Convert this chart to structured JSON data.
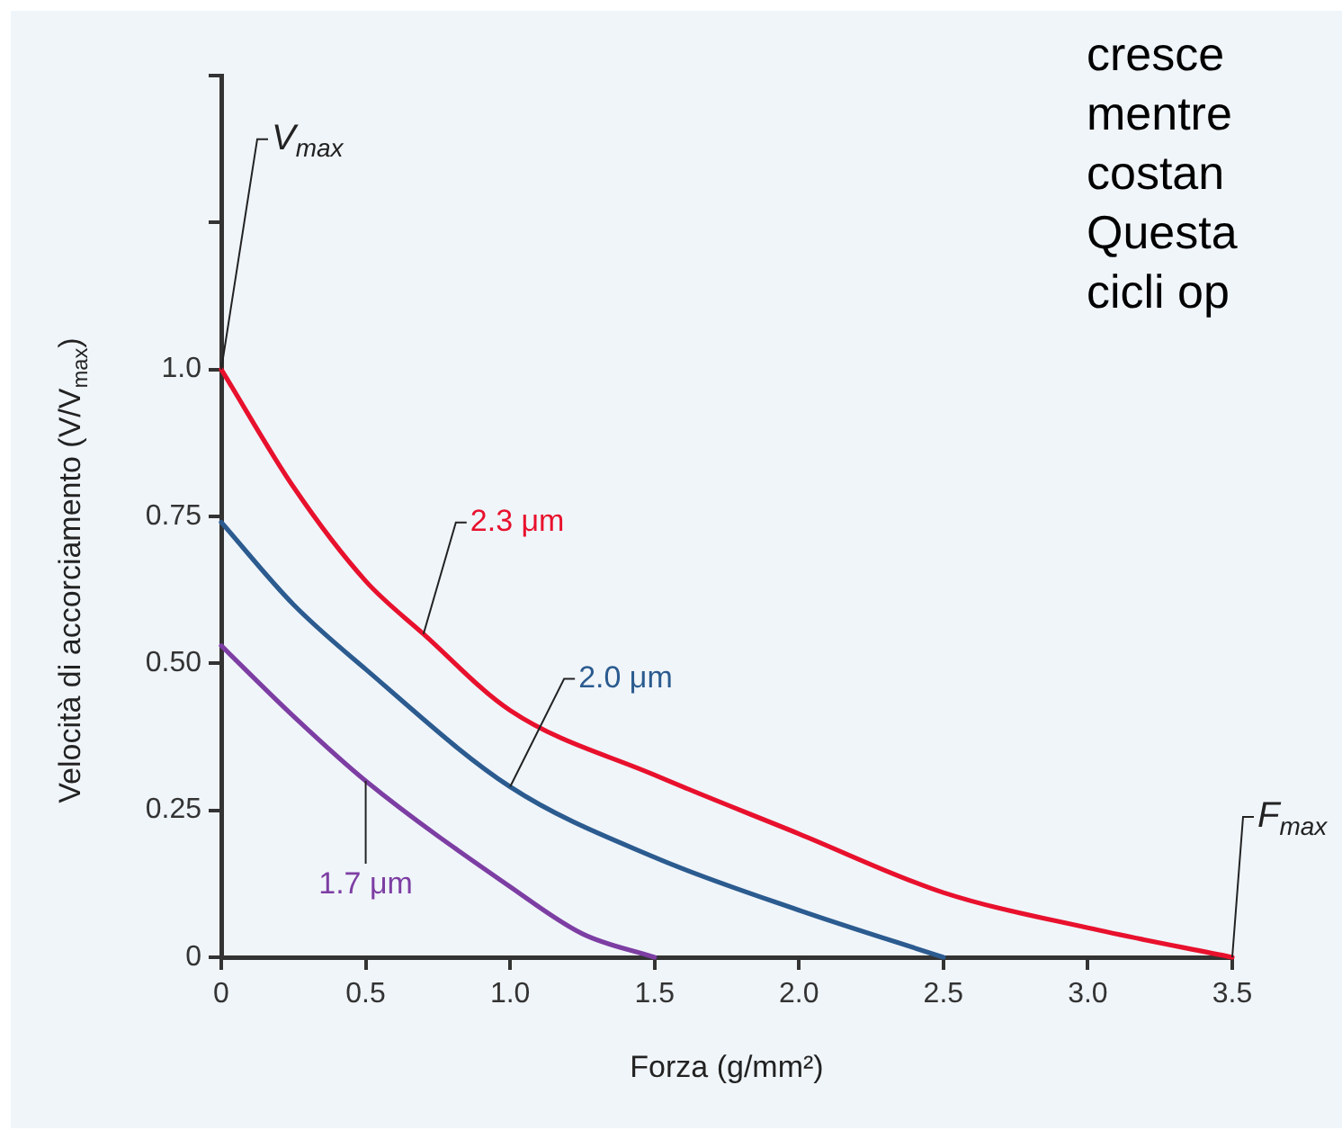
{
  "chart_data": {
    "type": "line",
    "xlabel": "Forza (g/mm²)",
    "ylabel": "Velocità di accorciamento (V/V$_{max}$)",
    "xlim": [
      0,
      3.5
    ],
    "xticks": [
      0,
      0.5,
      {
        "value": 1,
        "label": "1.0"
      },
      1.5,
      {
        "value": 2,
        "label": "2.0"
      },
      2.5,
      {
        "value": 3,
        "label": "3.0"
      },
      3.5
    ],
    "ylim": [
      0,
      1.5
    ],
    "yticks": [
      0,
      0.25,
      {
        "value": 0.5,
        "label": "0.50"
      },
      0.75,
      {
        "value": 1,
        "label": "1.0"
      },
      {
        "value": 1.25,
        "label": null
      },
      {
        "value": 1.5,
        "label": null
      }
    ],
    "grid": false,
    "legend": false,
    "marker": "none",
    "line_style": "solid",
    "series": [
      {
        "name": "2.3 μm",
        "color": "#e8112d",
        "x": [
          0,
          0.25,
          0.5,
          0.7,
          1,
          1.5,
          2,
          2.5,
          3,
          3.5
        ],
        "values": [
          1,
          0.8,
          0.64,
          0.55,
          0.42,
          0.31,
          0.21,
          0.11,
          0.05,
          0
        ]
      },
      {
        "name": "2.0 μm",
        "color": "#2b5b8f",
        "x": [
          0,
          0.25,
          0.5,
          1,
          1.5,
          2,
          2.5
        ],
        "values": [
          0.74,
          0.6,
          0.49,
          0.29,
          0.17,
          0.08,
          0
        ]
      },
      {
        "name": "1.7 μm",
        "color": "#7d3ea3",
        "x": [
          0,
          0.25,
          0.5,
          1,
          1.25,
          1.5
        ],
        "values": [
          0.53,
          0.41,
          0.3,
          0.12,
          0.04,
          0
        ]
      }
    ],
    "annotations": [
      {
        "text": "V$_{max}$",
        "x": 0,
        "y": 1
      },
      {
        "text": "F$_{max}$",
        "x": 3.5,
        "y": 0
      },
      "cresce",
      "mentre",
      "costan",
      "Questa",
      "cicli op"
    ]
  }
}
